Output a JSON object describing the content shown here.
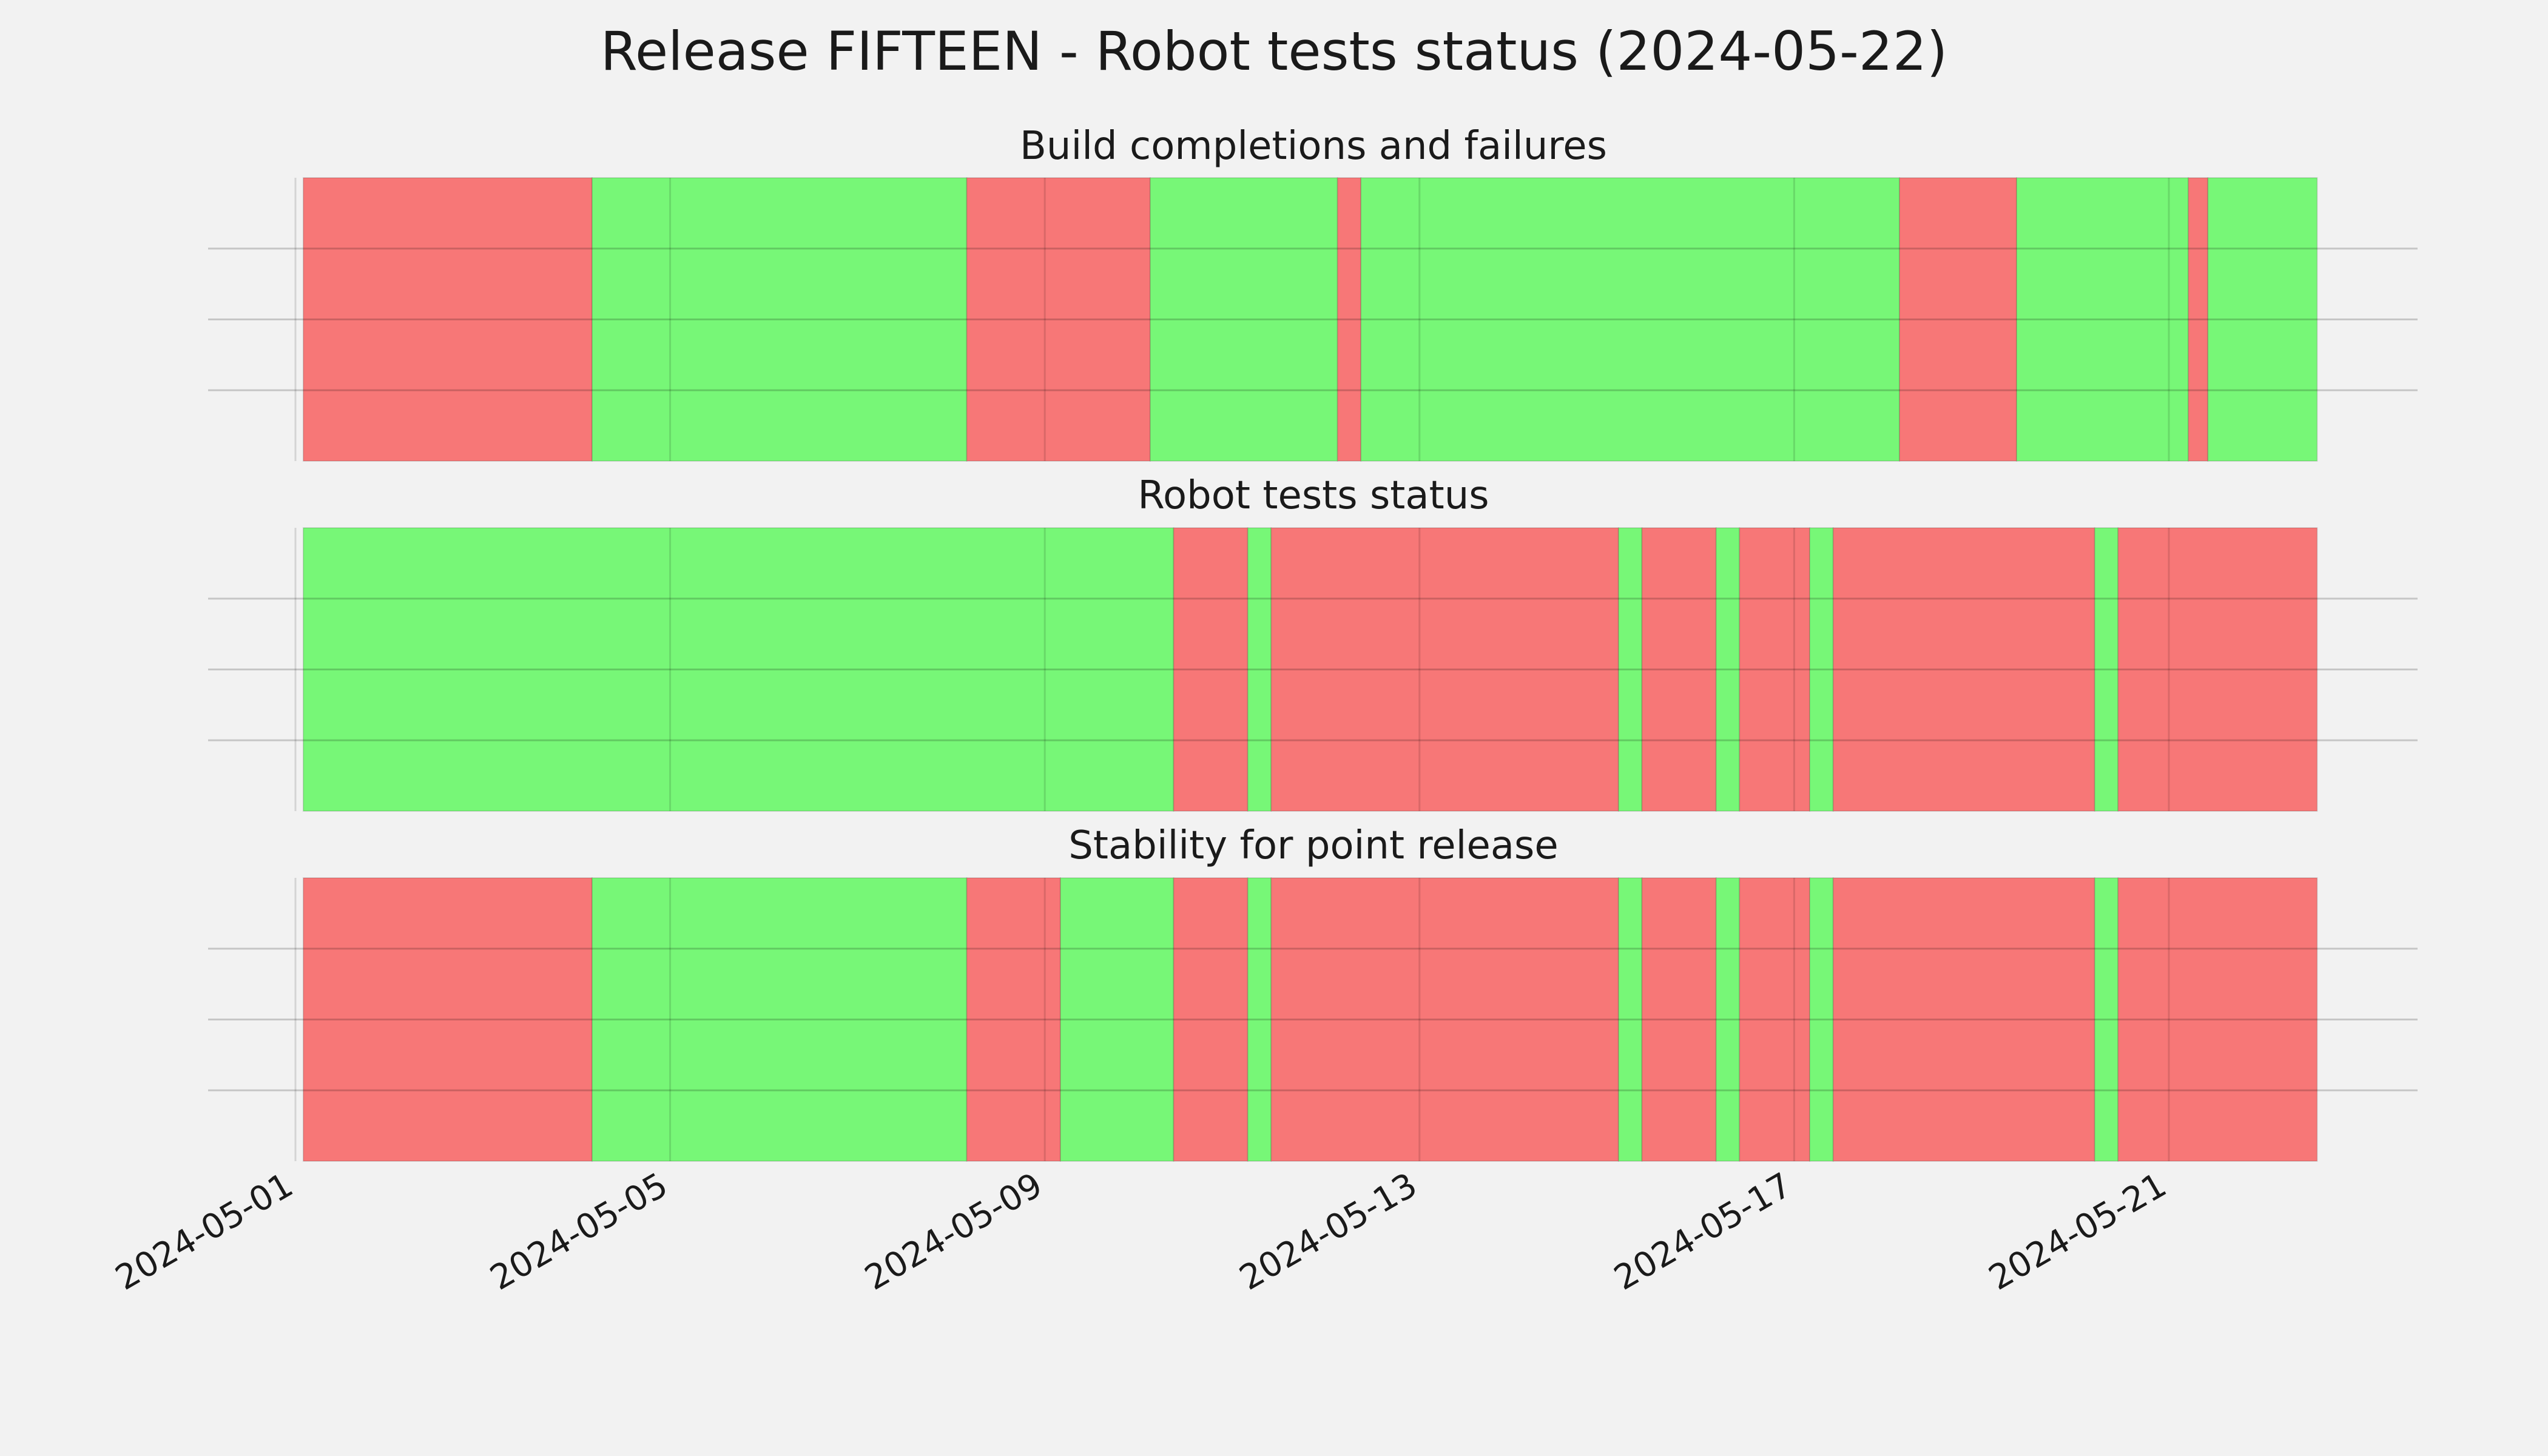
{
  "chart_data": {
    "type": "timeline",
    "title": "Release FIFTEEN - Robot tests status (2024-05-22)",
    "x_ticks": [
      "2024-05-01",
      "2024-05-05",
      "2024-05-09",
      "2024-05-13",
      "2024-05-17",
      "2024-05-21"
    ],
    "x_range": [
      "2024-05-01T00:00",
      "2024-05-23T12:00"
    ],
    "grid": true,
    "colors": {
      "pass": "#77f777",
      "fail": "#f77777"
    },
    "panels": [
      {
        "title": "Build completions and failures",
        "segments": [
          {
            "start": "2024-05-01T02:00",
            "end": "2024-05-04T04:00",
            "status": "fail"
          },
          {
            "start": "2024-05-04T04:00",
            "end": "2024-05-08T04:00",
            "status": "pass"
          },
          {
            "start": "2024-05-08T04:00",
            "end": "2024-05-10T03:00",
            "status": "fail"
          },
          {
            "start": "2024-05-10T03:00",
            "end": "2024-05-12T03:00",
            "status": "pass"
          },
          {
            "start": "2024-05-12T03:00",
            "end": "2024-05-12T09:00",
            "status": "fail"
          },
          {
            "start": "2024-05-12T09:00",
            "end": "2024-05-18T03:00",
            "status": "pass"
          },
          {
            "start": "2024-05-18T03:00",
            "end": "2024-05-19T09:00",
            "status": "fail"
          },
          {
            "start": "2024-05-19T09:00",
            "end": "2024-05-21T05:00",
            "status": "pass"
          },
          {
            "start": "2024-05-21T05:00",
            "end": "2024-05-21T10:00",
            "status": "fail"
          },
          {
            "start": "2024-05-21T10:00",
            "end": "2024-05-22T14:00",
            "status": "pass"
          }
        ]
      },
      {
        "title": "Robot tests status",
        "segments": [
          {
            "start": "2024-05-01T02:00",
            "end": "2024-05-10T09:00",
            "status": "pass"
          },
          {
            "start": "2024-05-10T09:00",
            "end": "2024-05-11T04:00",
            "status": "fail"
          },
          {
            "start": "2024-05-11T04:00",
            "end": "2024-05-11T10:00",
            "status": "pass"
          },
          {
            "start": "2024-05-11T10:00",
            "end": "2024-05-15T03:00",
            "status": "fail"
          },
          {
            "start": "2024-05-15T03:00",
            "end": "2024-05-15T09:00",
            "status": "pass"
          },
          {
            "start": "2024-05-15T09:00",
            "end": "2024-05-16T04:00",
            "status": "fail"
          },
          {
            "start": "2024-05-16T04:00",
            "end": "2024-05-16T10:00",
            "status": "pass"
          },
          {
            "start": "2024-05-16T10:00",
            "end": "2024-05-17T04:00",
            "status": "fail"
          },
          {
            "start": "2024-05-17T04:00",
            "end": "2024-05-17T10:00",
            "status": "pass"
          },
          {
            "start": "2024-05-17T10:00",
            "end": "2024-05-20T05:00",
            "status": "fail"
          },
          {
            "start": "2024-05-20T05:00",
            "end": "2024-05-20T11:00",
            "status": "pass"
          },
          {
            "start": "2024-05-20T11:00",
            "end": "2024-05-22T14:00",
            "status": "fail"
          }
        ]
      },
      {
        "title": "Stability for point release",
        "segments": [
          {
            "start": "2024-05-01T02:00",
            "end": "2024-05-04T04:00",
            "status": "fail"
          },
          {
            "start": "2024-05-04T04:00",
            "end": "2024-05-08T04:00",
            "status": "pass"
          },
          {
            "start": "2024-05-08T04:00",
            "end": "2024-05-09T04:00",
            "status": "fail"
          },
          {
            "start": "2024-05-09T04:00",
            "end": "2024-05-10T09:00",
            "status": "pass"
          },
          {
            "start": "2024-05-10T09:00",
            "end": "2024-05-11T04:00",
            "status": "fail"
          },
          {
            "start": "2024-05-11T04:00",
            "end": "2024-05-11T10:00",
            "status": "pass"
          },
          {
            "start": "2024-05-11T10:00",
            "end": "2024-05-15T03:00",
            "status": "fail"
          },
          {
            "start": "2024-05-15T03:00",
            "end": "2024-05-15T09:00",
            "status": "pass"
          },
          {
            "start": "2024-05-15T09:00",
            "end": "2024-05-16T04:00",
            "status": "fail"
          },
          {
            "start": "2024-05-16T04:00",
            "end": "2024-05-16T10:00",
            "status": "pass"
          },
          {
            "start": "2024-05-16T10:00",
            "end": "2024-05-17T04:00",
            "status": "fail"
          },
          {
            "start": "2024-05-17T04:00",
            "end": "2024-05-17T10:00",
            "status": "pass"
          },
          {
            "start": "2024-05-17T10:00",
            "end": "2024-05-20T05:00",
            "status": "fail"
          },
          {
            "start": "2024-05-20T05:00",
            "end": "2024-05-20T11:00",
            "status": "pass"
          },
          {
            "start": "2024-05-20T11:00",
            "end": "2024-05-22T14:00",
            "status": "fail"
          }
        ]
      }
    ]
  }
}
